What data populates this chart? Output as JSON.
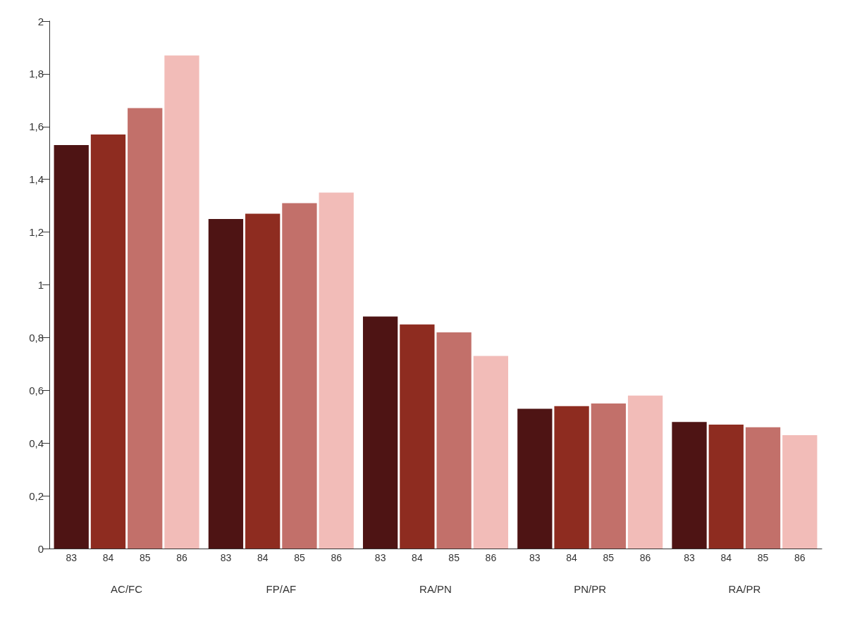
{
  "chart_data": {
    "type": "bar",
    "categories": [
      "AC/FC",
      "FP/AF",
      "RA/PN",
      "PN/PR",
      "RA/PR"
    ],
    "series": [
      {
        "name": "83",
        "color": "#4e1414",
        "values": [
          1.53,
          1.25,
          0.88,
          0.53,
          0.48
        ]
      },
      {
        "name": "84",
        "color": "#8e2c20",
        "values": [
          1.57,
          1.27,
          0.85,
          0.54,
          0.47
        ]
      },
      {
        "name": "85",
        "color": "#c2706a",
        "values": [
          1.67,
          1.31,
          0.82,
          0.55,
          0.46
        ]
      },
      {
        "name": "86",
        "color": "#f2bcb8",
        "values": [
          1.87,
          1.35,
          0.73,
          0.58,
          0.43
        ]
      }
    ],
    "ylim": [
      0,
      2
    ],
    "yticks": [
      0,
      {
        "value": 0.2,
        "label": "0,2"
      },
      {
        "value": 0.4,
        "label": "0,4"
      },
      {
        "value": 0.6,
        "label": "0,6"
      },
      {
        "value": 0.8,
        "label": "0,8"
      },
      1,
      {
        "value": 1.2,
        "label": "1,2"
      },
      {
        "value": 1.4,
        "label": "1,4"
      },
      {
        "value": 1.6,
        "label": "1,6"
      },
      {
        "value": 1.8,
        "label": "1,8"
      },
      2
    ],
    "grid": false,
    "legend": false
  }
}
